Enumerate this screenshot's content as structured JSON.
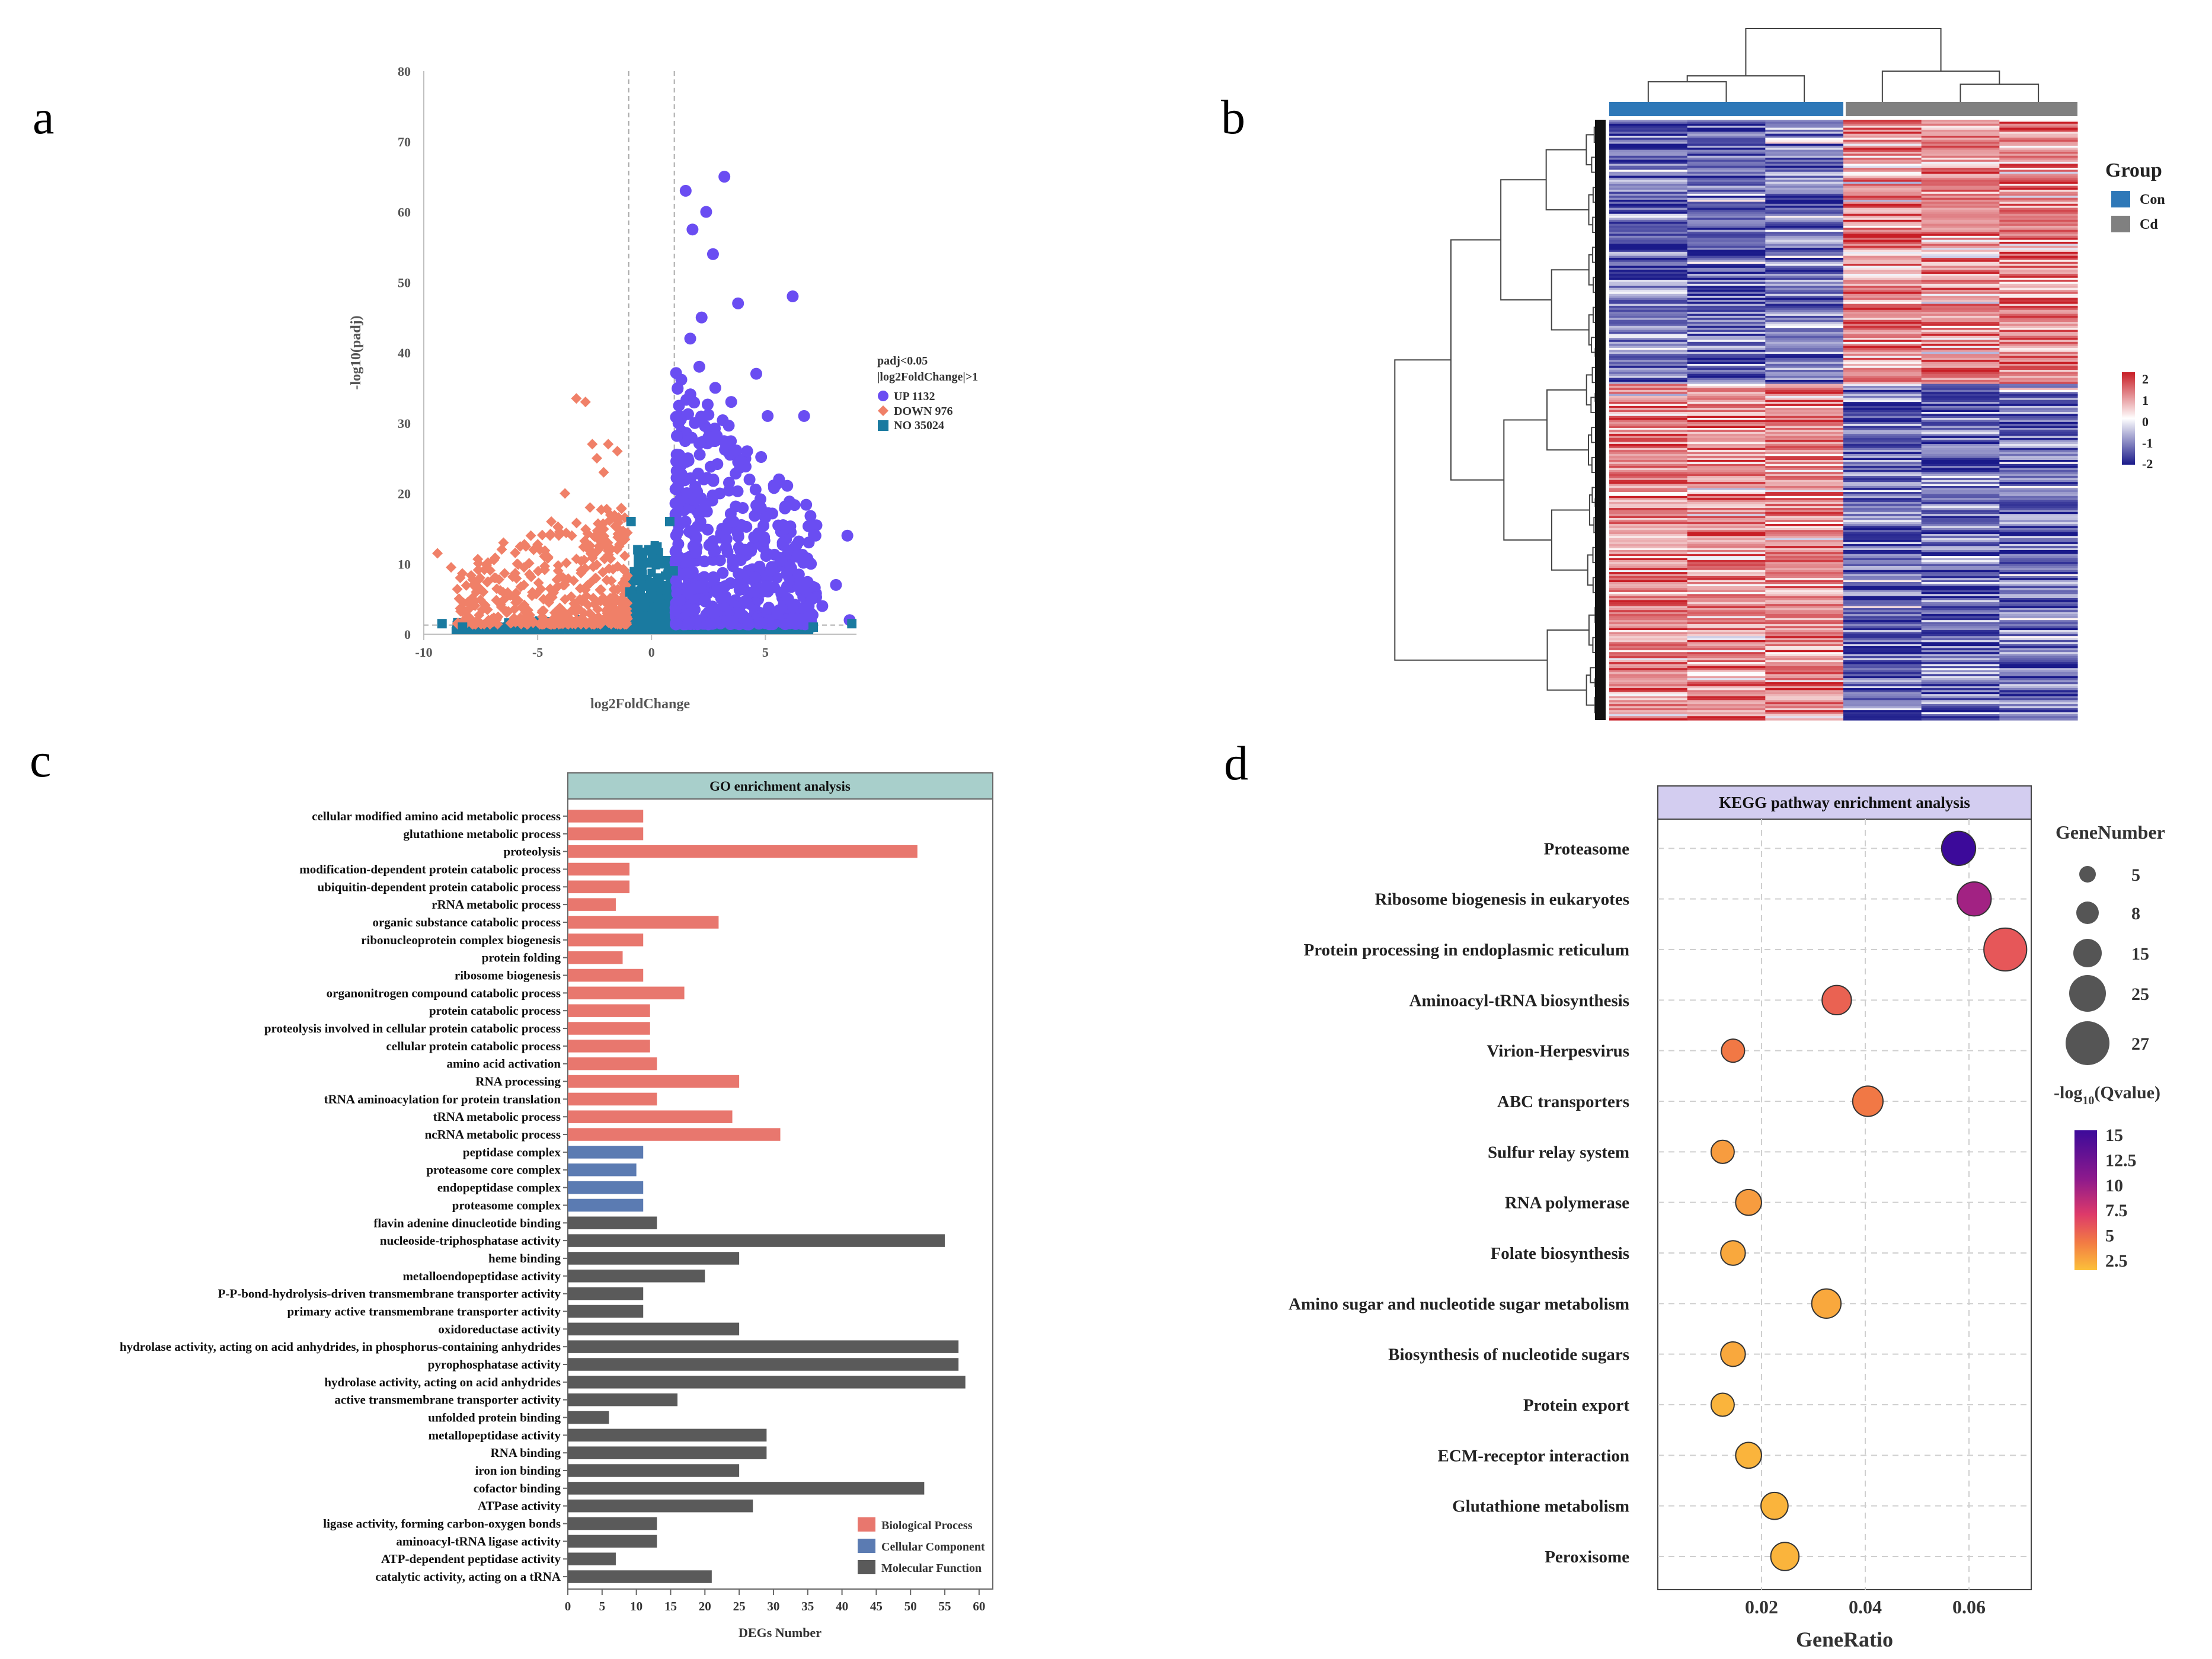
{
  "panels": {
    "a": "a",
    "b": "b",
    "c": "c",
    "d": "d"
  },
  "chart_data": [
    {
      "id": "volcano",
      "type": "scatter",
      "xlabel": "log2FoldChange",
      "ylabel": "-log10(padj)",
      "xlim": [
        -10,
        9
      ],
      "ylim": [
        0,
        80
      ],
      "xticks": [
        -10,
        -5,
        0,
        5
      ],
      "yticks": [
        0,
        10,
        20,
        30,
        40,
        50,
        60,
        70,
        80
      ],
      "thresholds": {
        "fold_change": [
          -1,
          1
        ],
        "neg_log10_padj": 1.3
      },
      "legend": {
        "title_line1": "padj<0.05",
        "title_line2": "|log2FoldChange|>1",
        "entries": [
          {
            "label": "UP 1132",
            "color": "#6a4df2",
            "marker": "circle"
          },
          {
            "label": "DOWN 976",
            "color": "#f08068",
            "marker": "diamond"
          },
          {
            "label": "NO 35024",
            "color": "#1a7aa0",
            "marker": "square"
          }
        ]
      },
      "series": [
        {
          "name": "UP",
          "color": "#6a4df2",
          "points": [
            [
              1.5,
              63
            ],
            [
              1.8,
              57.5
            ],
            [
              2.4,
              60
            ],
            [
              2.7,
              54
            ],
            [
              3.2,
              65
            ],
            [
              2.2,
              45
            ],
            [
              1.7,
              42
            ],
            [
              3.8,
              47
            ],
            [
              6.2,
              48
            ],
            [
              2.1,
              38
            ],
            [
              2.8,
              35
            ],
            [
              3.5,
              33
            ],
            [
              4.6,
              37
            ],
            [
              5.1,
              31
            ],
            [
              6.7,
              31
            ],
            [
              1.9,
              30
            ],
            [
              2.5,
              28
            ],
            [
              3.3,
              27
            ],
            [
              4.2,
              26
            ],
            [
              5.6,
              22
            ],
            [
              4.8,
              18
            ],
            [
              3.6,
              16
            ],
            [
              5.9,
              15
            ],
            [
              7.2,
              14
            ],
            [
              8.6,
              14
            ],
            [
              6.4,
              11
            ],
            [
              7.0,
              10
            ],
            [
              8.1,
              7
            ],
            [
              8.7,
              2
            ],
            [
              5.2,
              9
            ],
            [
              4.1,
              12
            ],
            [
              3.0,
              20
            ],
            [
              2.3,
              22
            ],
            [
              1.6,
              25
            ],
            [
              6.0,
              5
            ],
            [
              7.5,
              4
            ],
            [
              4.5,
              6
            ],
            [
              3.9,
              3
            ]
          ]
        },
        {
          "name": "DOWN",
          "color": "#f08068",
          "points": [
            [
              -3.3,
              33.5
            ],
            [
              -2.9,
              33
            ],
            [
              -1.9,
              27
            ],
            [
              -1.5,
              26
            ],
            [
              -2.6,
              27
            ],
            [
              -2.4,
              25
            ],
            [
              -9.4,
              11.5
            ],
            [
              -6.5,
              13
            ],
            [
              -8.4,
              8
            ],
            [
              -7.7,
              6
            ],
            [
              -5.9,
              10
            ],
            [
              -5.3,
              14
            ],
            [
              -4.4,
              16
            ],
            [
              -3.8,
              20
            ],
            [
              -2.1,
              23
            ],
            [
              -1.6,
              16.5
            ],
            [
              -7.2,
              3.5
            ],
            [
              -6.2,
              5.5
            ],
            [
              -4.9,
              12
            ],
            [
              -4.1,
              9
            ],
            [
              -3.5,
              14
            ],
            [
              -2.7,
              18
            ],
            [
              -1.8,
              12
            ],
            [
              -5.6,
              7
            ],
            [
              -6.9,
              8
            ],
            [
              -8.8,
              9.5
            ]
          ]
        },
        {
          "name": "NO",
          "color": "#1a7aa0",
          "points": [
            [
              -0.9,
              16
            ],
            [
              0.8,
              16
            ],
            [
              -0.6,
              12
            ],
            [
              0.5,
              10
            ],
            [
              -9.2,
              1.5
            ],
            [
              8.8,
              1.5
            ],
            [
              -8.3,
              1
            ],
            [
              7.1,
              1
            ],
            [
              -0.3,
              4
            ],
            [
              0.3,
              5
            ],
            [
              -0.95,
              6
            ],
            [
              0.95,
              9
            ]
          ]
        }
      ]
    },
    {
      "id": "heatmap",
      "type": "heatmap",
      "legend": {
        "group_title": "Group",
        "groups": [
          {
            "label": "Con",
            "color": "#2e78b8"
          },
          {
            "label": "Cd",
            "color": "#808080"
          }
        ],
        "color_ticks": [
          "2",
          "1",
          "0",
          "-1",
          "-2"
        ],
        "color_range": [
          -2,
          2
        ]
      },
      "columns": [
        {
          "group": "Con",
          "pattern": "con"
        },
        {
          "group": "Con",
          "pattern": "con"
        },
        {
          "group": "Con",
          "pattern": "con"
        },
        {
          "group": "Cd",
          "pattern": "cd"
        },
        {
          "group": "Cd",
          "pattern": "cd"
        },
        {
          "group": "Cd",
          "pattern": "cd"
        }
      ],
      "row_blocks": [
        {
          "fraction": 0.44,
          "con_mean": -1.2,
          "cd_mean": 1.0
        },
        {
          "fraction": 0.56,
          "con_mean": 1.0,
          "cd_mean": -1.2
        }
      ]
    },
    {
      "id": "go",
      "type": "bar",
      "title": "GO enrichment analysis",
      "xlabel": "DEGs Number",
      "xlim": [
        0,
        62
      ],
      "xticks": [
        0,
        5,
        10,
        15,
        20,
        25,
        30,
        35,
        40,
        45,
        50,
        55,
        60
      ],
      "legend": [
        {
          "label": "Biological Process",
          "color": "#e8776e"
        },
        {
          "label": "Cellular Component",
          "color": "#5b7bb2"
        },
        {
          "label": "Molecular Function",
          "color": "#5a5a5a"
        }
      ],
      "categories": [
        "cellular modified amino acid metabolic process",
        "glutathione metabolic process",
        "proteolysis",
        "modification-dependent protein catabolic process",
        "ubiquitin-dependent protein catabolic process",
        "rRNA metabolic process",
        "organic substance catabolic process",
        "ribonucleoprotein complex biogenesis",
        "protein folding",
        "ribosome biogenesis",
        "organonitrogen compound catabolic process",
        "protein catabolic process",
        "proteolysis involved in cellular protein catabolic process",
        "cellular protein catabolic process",
        "amino acid activation",
        "RNA processing",
        "tRNA aminoacylation for protein translation",
        "tRNA metabolic process",
        "ncRNA metabolic process",
        "peptidase complex",
        "proteasome core complex",
        "endopeptidase complex",
        "proteasome complex",
        "flavin adenine dinucleotide binding",
        "nucleoside-triphosphatase activity",
        "heme binding",
        "metalloendopeptidase activity",
        "P-P-bond-hydrolysis-driven transmembrane transporter activity",
        "primary active transmembrane transporter activity",
        "oxidoreductase activity",
        "hydrolase activity, acting on acid anhydrides, in phosphorus-containing anhydrides",
        "pyrophosphatase activity",
        "hydrolase activity, acting on acid anhydrides",
        "active transmembrane transporter activity",
        "unfolded protein binding",
        "metallopeptidase activity",
        "RNA binding",
        "iron ion binding",
        "cofactor binding",
        "ATPase activity",
        "ligase activity, forming carbon-oxygen bonds",
        "aminoacyl-tRNA ligase activity",
        "ATP-dependent peptidase activity",
        "catalytic activity, acting on a tRNA"
      ],
      "values": [
        11,
        11,
        51,
        9,
        9,
        7,
        22,
        11,
        8,
        11,
        17,
        12,
        12,
        12,
        13,
        25,
        13,
        24,
        31,
        11,
        10,
        11,
        11,
        13,
        55,
        25,
        20,
        11,
        11,
        25,
        57,
        57,
        58,
        16,
        6,
        29,
        29,
        25,
        52,
        27,
        13,
        13,
        7,
        21
      ],
      "groups": [
        "BP",
        "BP",
        "BP",
        "BP",
        "BP",
        "BP",
        "BP",
        "BP",
        "BP",
        "BP",
        "BP",
        "BP",
        "BP",
        "BP",
        "BP",
        "BP",
        "BP",
        "BP",
        "BP",
        "CC",
        "CC",
        "CC",
        "CC",
        "MF",
        "MF",
        "MF",
        "MF",
        "MF",
        "MF",
        "MF",
        "MF",
        "MF",
        "MF",
        "MF",
        "MF",
        "MF",
        "MF",
        "MF",
        "MF",
        "MF",
        "MF",
        "MF",
        "MF",
        "MF"
      ]
    },
    {
      "id": "kegg",
      "type": "scatter",
      "title": "KEGG pathway enrichment analysis",
      "xlabel": "GeneRatio",
      "xlim": [
        0.0,
        0.072
      ],
      "xticks": [
        0.02,
        0.04,
        0.06
      ],
      "xtick_labels": [
        "0.02",
        "0.04",
        "0.06"
      ],
      "size_legend_title": "GeneNumber",
      "size_legend": [
        5,
        8,
        15,
        25,
        27
      ],
      "color_legend_title_main": "-log",
      "color_legend_title_sub": "10",
      "color_legend_title_tail": "(Qvalue)",
      "color_ticks": [
        15,
        12.5,
        10,
        7.5,
        5,
        2.5
      ],
      "color_tick_labels": [
        "15",
        "12.5",
        "10",
        "7.5",
        "5",
        "2.5"
      ],
      "color_range": [
        1.5,
        16
      ],
      "pathways": [
        "Proteasome",
        "Ribosome biogenesis in eukaryotes",
        "Protein processing in endoplasmic reticulum",
        "Aminoacyl-tRNA biosynthesis",
        "Virion-Herpesvirus",
        "ABC transporters",
        "Sulfur relay system",
        "RNA polymerase",
        "Folate biosynthesis",
        "Amino sugar and nucleotide sugar metabolism",
        "Biosynthesis of nucleotide sugars",
        "Protein export",
        "ECM-receptor interaction",
        "Glutathione metabolism",
        "Peroxisome"
      ],
      "gene_ratio": [
        0.058,
        0.061,
        0.067,
        0.0345,
        0.0145,
        0.0405,
        0.0125,
        0.0175,
        0.0145,
        0.0325,
        0.0145,
        0.0125,
        0.0175,
        0.0225,
        0.0245
      ],
      "gene_number": [
        15,
        15,
        27,
        10,
        5,
        11,
        5,
        7,
        6,
        10,
        6,
        5,
        7,
        8,
        9
      ],
      "qvalue": [
        16,
        10,
        6,
        5.5,
        4.5,
        4.5,
        3,
        3,
        2.5,
        2.5,
        2.5,
        2,
        2,
        2,
        2
      ]
    }
  ]
}
